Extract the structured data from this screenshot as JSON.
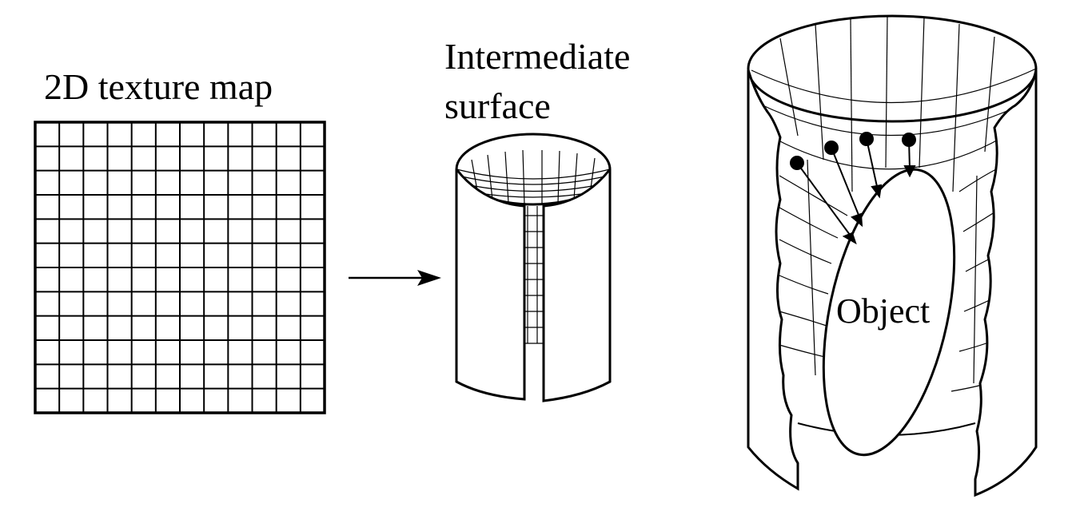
{
  "labels": {
    "texture_map": "2D texture map",
    "intermediate_line1": "Intermediate",
    "intermediate_line2": "surface",
    "object": "Object"
  },
  "texture_grid": {
    "rows": 12,
    "cols": 12
  },
  "colors": {
    "ink": "#000000",
    "background": "#ffffff"
  },
  "icons": [
    "arrow-right-icon",
    "projection-dot-icon"
  ]
}
